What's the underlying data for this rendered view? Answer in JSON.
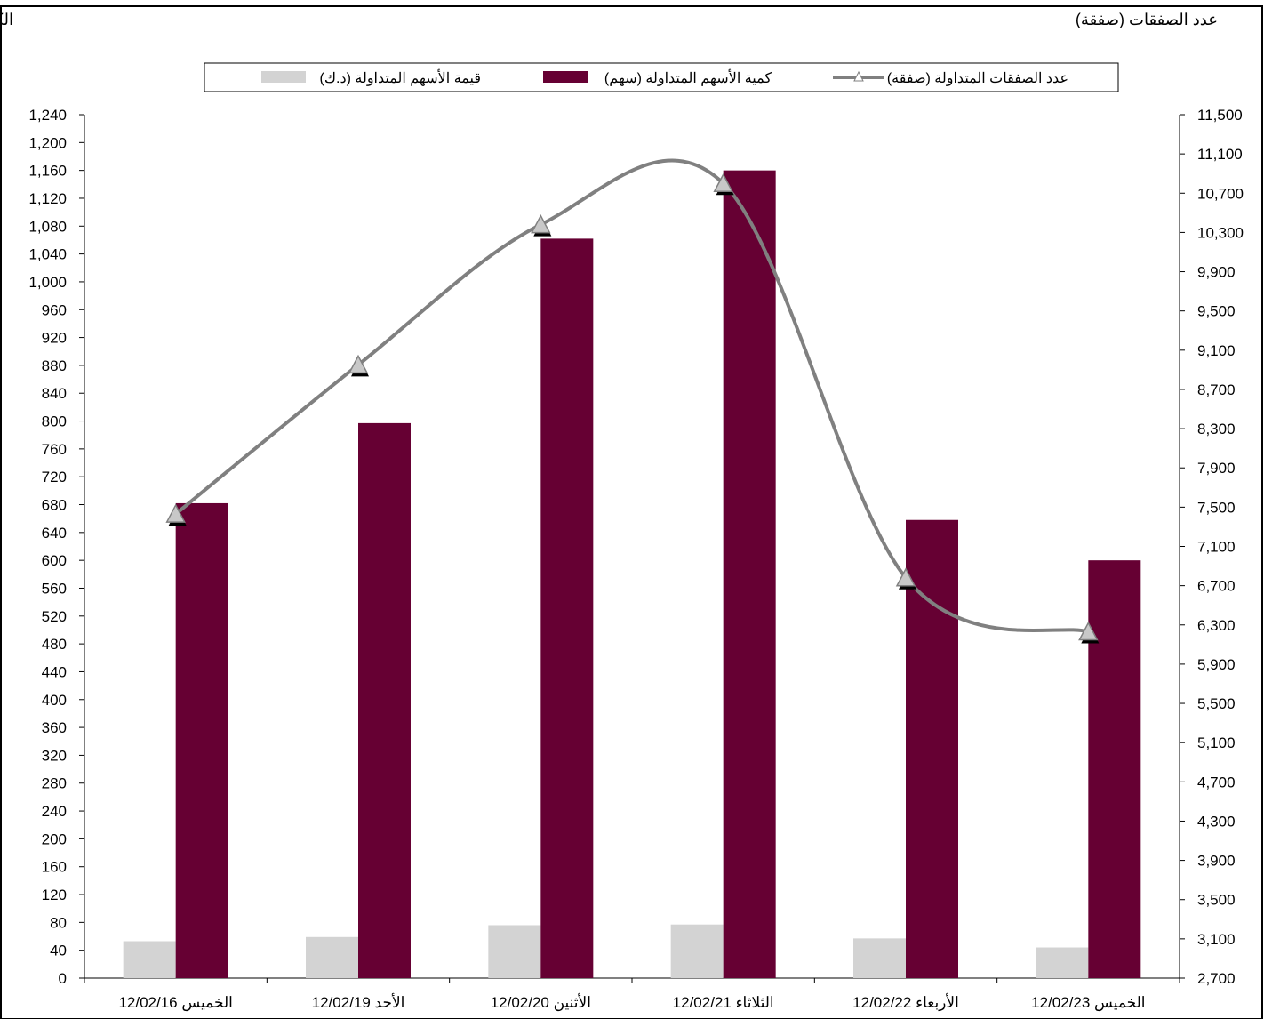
{
  "chart_data": {
    "type": "bar",
    "left_axis_title": "الكمية (مليون سهم) والقيمة (مليون د.ك)",
    "right_axis_title": "عدد الصفقات (صفقة)",
    "categories": [
      "12/02/16 الخميس",
      "12/02/19 الأحد",
      "12/02/20 الأثنين",
      "12/02/21 الثلاثاء",
      "12/02/22 الأربعاء",
      "12/02/23 الخميس"
    ],
    "left_axis": {
      "ylim": [
        0,
        1240
      ],
      "ticks": [
        "0",
        "40",
        "80",
        "120",
        "160",
        "200",
        "240",
        "280",
        "320",
        "360",
        "400",
        "440",
        "480",
        "520",
        "560",
        "600",
        "640",
        "680",
        "720",
        "760",
        "800",
        "840",
        "880",
        "920",
        "960",
        "1,000",
        "1,040",
        "1,080",
        "1,120",
        "1,160",
        "1,200",
        "1,240"
      ]
    },
    "right_axis": {
      "ylim": [
        2700,
        11500
      ],
      "ticks": [
        "2,700",
        "3,100",
        "3,500",
        "3,900",
        "4,300",
        "4,700",
        "5,100",
        "5,500",
        "5,900",
        "6,300",
        "6,700",
        "7,100",
        "7,500",
        "7,900",
        "8,300",
        "8,700",
        "9,100",
        "9,500",
        "9,900",
        "10,300",
        "10,700",
        "11,100",
        "11,500"
      ]
    },
    "series": [
      {
        "name": "قيمة الأسهم  المتداولة (د.ك)",
        "kind": "bar",
        "axis": "left",
        "color": "#d3d3d3",
        "values": [
          53,
          59,
          76,
          77,
          57,
          44
        ]
      },
      {
        "name": "كمية الأسهم المتداولة (سهم)",
        "kind": "bar",
        "axis": "left",
        "color": "#660033",
        "values": [
          682,
          797,
          1062,
          1160,
          658,
          600
        ]
      },
      {
        "name": "عدد الصفقات المتداولة (صفقة)",
        "kind": "line",
        "axis": "right",
        "color": "#808080",
        "values": [
          7430,
          8950,
          10380,
          10800,
          6780,
          6230
        ]
      }
    ],
    "legend_position": "top"
  }
}
